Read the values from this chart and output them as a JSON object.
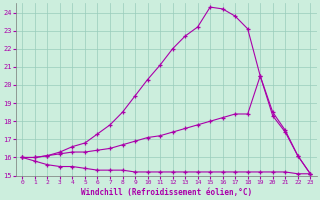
{
  "xlabel": "Windchill (Refroidissement éolien,°C)",
  "xlim": [
    -0.5,
    23.5
  ],
  "ylim": [
    15,
    24.5
  ],
  "yticks": [
    15,
    16,
    17,
    18,
    19,
    20,
    21,
    22,
    23,
    24
  ],
  "xticks": [
    0,
    1,
    2,
    3,
    4,
    5,
    6,
    7,
    8,
    9,
    10,
    11,
    12,
    13,
    14,
    15,
    16,
    17,
    18,
    19,
    20,
    21,
    22,
    23
  ],
  "background_color": "#cceedd",
  "line_color": "#aa00aa",
  "grid_color": "#99ccbb",
  "lines": [
    {
      "x": [
        0,
        1,
        2,
        3,
        4,
        5,
        6,
        7,
        8,
        9,
        10,
        11,
        12,
        13,
        14,
        15,
        16,
        17,
        18,
        19,
        20,
        21,
        22,
        23
      ],
      "y": [
        16.0,
        15.8,
        15.6,
        15.5,
        15.5,
        15.4,
        15.3,
        15.3,
        15.3,
        15.2,
        15.2,
        15.2,
        15.2,
        15.2,
        15.2,
        15.2,
        15.2,
        15.2,
        15.2,
        15.2,
        15.2,
        15.2,
        15.1,
        15.1
      ]
    },
    {
      "x": [
        0,
        1,
        2,
        3,
        4,
        5,
        6,
        7,
        8,
        9,
        10,
        11,
        12,
        13,
        14,
        15,
        16,
        17,
        18,
        19,
        20,
        21,
        22,
        23
      ],
      "y": [
        16.0,
        16.0,
        16.1,
        16.2,
        16.3,
        16.3,
        16.4,
        16.5,
        16.7,
        16.9,
        17.1,
        17.2,
        17.4,
        17.6,
        17.8,
        18.0,
        18.2,
        18.4,
        18.4,
        20.5,
        18.5,
        17.5,
        16.1,
        15.1
      ]
    },
    {
      "x": [
        0,
        1,
        2,
        3,
        4,
        5,
        6,
        7,
        8,
        9,
        10,
        11,
        12,
        13,
        14,
        15,
        16,
        17,
        18,
        19,
        20,
        21,
        22,
        23
      ],
      "y": [
        16.0,
        16.0,
        16.1,
        16.3,
        16.6,
        16.8,
        17.3,
        17.8,
        18.5,
        19.4,
        20.3,
        21.1,
        22.0,
        22.7,
        23.2,
        24.3,
        24.2,
        23.8,
        23.1,
        20.5,
        18.3,
        17.4,
        16.1,
        15.1
      ]
    }
  ]
}
